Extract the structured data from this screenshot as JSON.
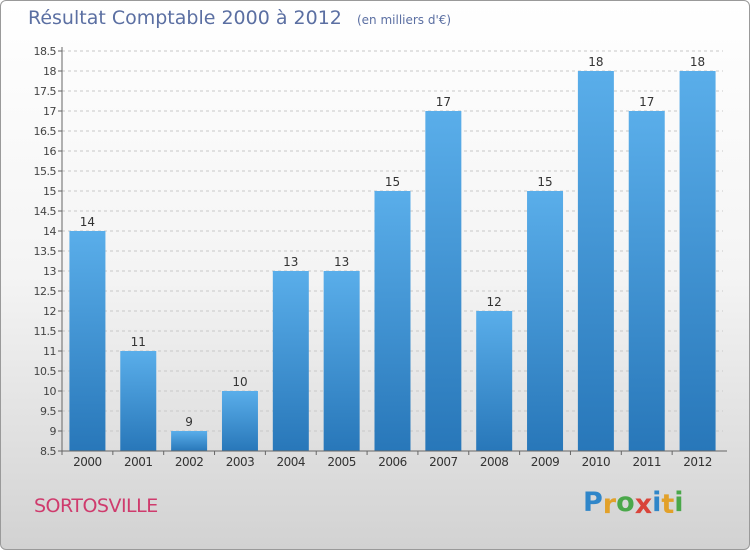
{
  "title": "Résultat Comptable 2000 à 2012",
  "unit": "(en milliers d'€)",
  "town": "SORTOSVILLE",
  "brand": {
    "letters": [
      {
        "ch": "P",
        "color": "#2f86c9"
      },
      {
        "ch": "r",
        "color": "#e2a12a"
      },
      {
        "ch": "o",
        "color": "#4aa84a"
      },
      {
        "ch": "x",
        "color": "#d9443a"
      },
      {
        "ch": "i",
        "color": "#2f86c9"
      },
      {
        "ch": "t",
        "color": "#e2a12a"
      },
      {
        "ch": "i",
        "color": "#4aa84a"
      }
    ]
  },
  "colors": {
    "bar_top": "#5aaeea",
    "bar_bottom": "#2877b9",
    "axis": "#666666",
    "grid": "#c8c8c8"
  },
  "chart_data": {
    "type": "bar",
    "categories": [
      "2000",
      "2001",
      "2002",
      "2003",
      "2004",
      "2005",
      "2006",
      "2007",
      "2008",
      "2009",
      "2010",
      "2011",
      "2012"
    ],
    "values": [
      14,
      11,
      9,
      10,
      13,
      13,
      15,
      17,
      12,
      15,
      18,
      17,
      18
    ],
    "ylim": [
      8.5,
      18.5
    ],
    "yticks": [
      "8.5",
      "9",
      "9.5",
      "10",
      "10.5",
      "11",
      "11.5",
      "12",
      "12.5",
      "13",
      "13.5",
      "14",
      "14.5",
      "15",
      "15.5",
      "16",
      "16.5",
      "17",
      "17.5",
      "18",
      "18.5"
    ],
    "grid": true,
    "title": "Résultat Comptable 2000 à 2012",
    "xlabel": "",
    "ylabel": ""
  }
}
